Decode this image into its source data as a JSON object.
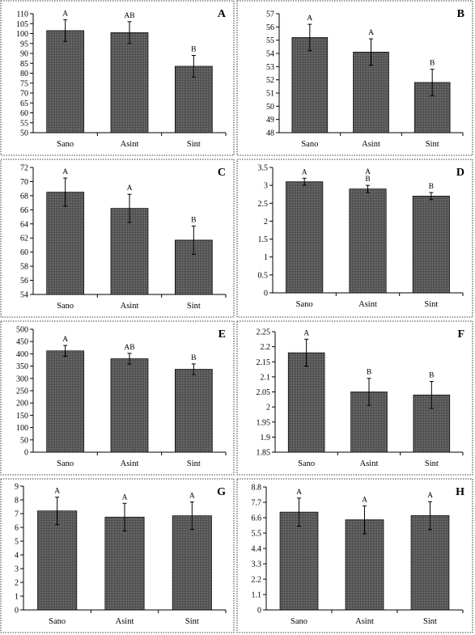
{
  "colors": {
    "bar_fill": "#585858",
    "bar_stroke": "#000000",
    "background": "#ffffff"
  },
  "chart_data": [
    {
      "type": "bar",
      "panel": "A",
      "categories": [
        "Sano",
        "Asint",
        "Sint"
      ],
      "values": [
        101.5,
        100.5,
        83.5
      ],
      "errors": [
        5.5,
        5.5,
        5.5
      ],
      "significance": [
        "A",
        "AB",
        "B"
      ],
      "ylim": [
        50,
        110
      ],
      "yticks": [
        "50",
        "55",
        "60",
        "65",
        "70",
        "75",
        "80",
        "85",
        "90",
        "95",
        "100",
        "105",
        "110"
      ]
    },
    {
      "type": "bar",
      "panel": "B",
      "categories": [
        "Sano",
        "Asint",
        "Sint"
      ],
      "values": [
        55.2,
        54.1,
        51.8
      ],
      "errors": [
        1.0,
        1.0,
        1.0
      ],
      "significance": [
        "A",
        "A",
        "B"
      ],
      "ylim": [
        48,
        57
      ],
      "yticks": [
        "48",
        "49",
        "50",
        "51",
        "52",
        "53",
        "54",
        "55",
        "56",
        "57"
      ]
    },
    {
      "type": "bar",
      "panel": "C",
      "categories": [
        "Sano",
        "Asint",
        "Sint"
      ],
      "values": [
        68.5,
        66.2,
        61.7
      ],
      "errors": [
        2.0,
        2.0,
        2.0
      ],
      "significance": [
        "A",
        "A",
        "B"
      ],
      "ylim": [
        54,
        72
      ],
      "yticks": [
        "54",
        "56",
        "58",
        "60",
        "62",
        "64",
        "66",
        "68",
        "70",
        "72"
      ]
    },
    {
      "type": "bar",
      "panel": "D",
      "categories": [
        "Sano",
        "Asint",
        "Sint"
      ],
      "values": [
        3.1,
        2.9,
        2.7
      ],
      "errors": [
        0.1,
        0.1,
        0.1
      ],
      "significance": [
        "A",
        "A\nB",
        "B"
      ],
      "ylim": [
        0,
        3.5
      ],
      "yticks": [
        "0",
        "0.5",
        "1",
        "1.5",
        "2",
        "2.5",
        "3",
        "3.5"
      ]
    },
    {
      "type": "bar",
      "panel": "E",
      "categories": [
        "Sano",
        "Asint",
        "Sint"
      ],
      "values": [
        412,
        380,
        337
      ],
      "errors": [
        22,
        22,
        22
      ],
      "significance": [
        "A",
        "AB",
        "B"
      ],
      "ylim": [
        0,
        500
      ],
      "yticks": [
        "0",
        "50",
        "100",
        "150",
        "200",
        "250",
        "300",
        "350",
        "400",
        "450",
        "500"
      ]
    },
    {
      "type": "bar",
      "panel": "F",
      "categories": [
        "Sano",
        "Asint",
        "Sint"
      ],
      "values": [
        2.18,
        2.05,
        2.04
      ],
      "errors": [
        0.045,
        0.045,
        0.045
      ],
      "significance": [
        "A",
        "B",
        "B"
      ],
      "ylim": [
        1.85,
        2.25
      ],
      "yticks": [
        "1.85",
        "1.9",
        "1.95",
        "2",
        "2.05",
        "2.1",
        "2.15",
        "2.2",
        "2.25"
      ]
    },
    {
      "type": "bar",
      "panel": "G",
      "categories": [
        "Sano",
        "Asint",
        "Sint"
      ],
      "values": [
        7.2,
        6.75,
        6.85
      ],
      "errors": [
        1.0,
        1.0,
        1.0
      ],
      "significance": [
        "A",
        "A",
        "A"
      ],
      "ylim": [
        0,
        9
      ],
      "yticks": [
        "0",
        "1",
        "2",
        "3",
        "4",
        "5",
        "6",
        "7",
        "8",
        "9"
      ]
    },
    {
      "type": "bar",
      "panel": "H",
      "categories": [
        "Sano",
        "Asint",
        "Sint"
      ],
      "values": [
        7.0,
        6.45,
        6.75
      ],
      "errors": [
        1.0,
        1.0,
        1.0
      ],
      "significance": [
        "A",
        "A",
        "A"
      ],
      "ylim": [
        0,
        8.8
      ],
      "yticks": [
        "0",
        "1.1",
        "2.2",
        "3.3",
        "4.4",
        "5.5",
        "6.6",
        "7.7",
        "8.8"
      ]
    }
  ]
}
